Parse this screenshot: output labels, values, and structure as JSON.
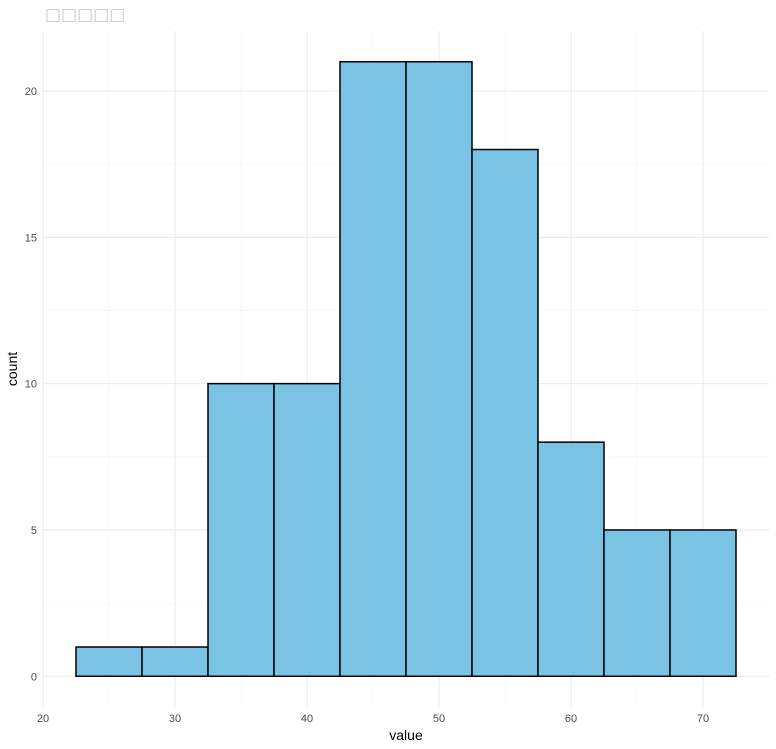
{
  "chart_data": {
    "type": "bar",
    "title": "□□□□□",
    "xlabel": "value",
    "ylabel": "count",
    "bins": [
      {
        "x0": 22.5,
        "x1": 27.5,
        "count": 1
      },
      {
        "x0": 27.5,
        "x1": 32.5,
        "count": 1
      },
      {
        "x0": 32.5,
        "x1": 37.5,
        "count": 10
      },
      {
        "x0": 37.5,
        "x1": 42.5,
        "count": 10
      },
      {
        "x0": 42.5,
        "x1": 47.5,
        "count": 21
      },
      {
        "x0": 47.5,
        "x1": 52.5,
        "count": 21
      },
      {
        "x0": 52.5,
        "x1": 57.5,
        "count": 18
      },
      {
        "x0": 57.5,
        "x1": 62.5,
        "count": 8
      },
      {
        "x0": 62.5,
        "x1": 67.5,
        "count": 5
      },
      {
        "x0": 67.5,
        "x1": 72.5,
        "count": 5
      }
    ],
    "x_ticks": [
      20,
      30,
      40,
      50,
      60,
      70
    ],
    "y_ticks": [
      0,
      5,
      10,
      15,
      20
    ],
    "xlim": [
      20,
      75
    ],
    "ylim": [
      -1.05,
      22.05
    ],
    "grid": true,
    "colors": {
      "bar_fill": "#7BC3E4",
      "bar_stroke": "#000000",
      "grid_major": "#EBEBEB",
      "grid_minor": "#F5F5F5"
    }
  }
}
